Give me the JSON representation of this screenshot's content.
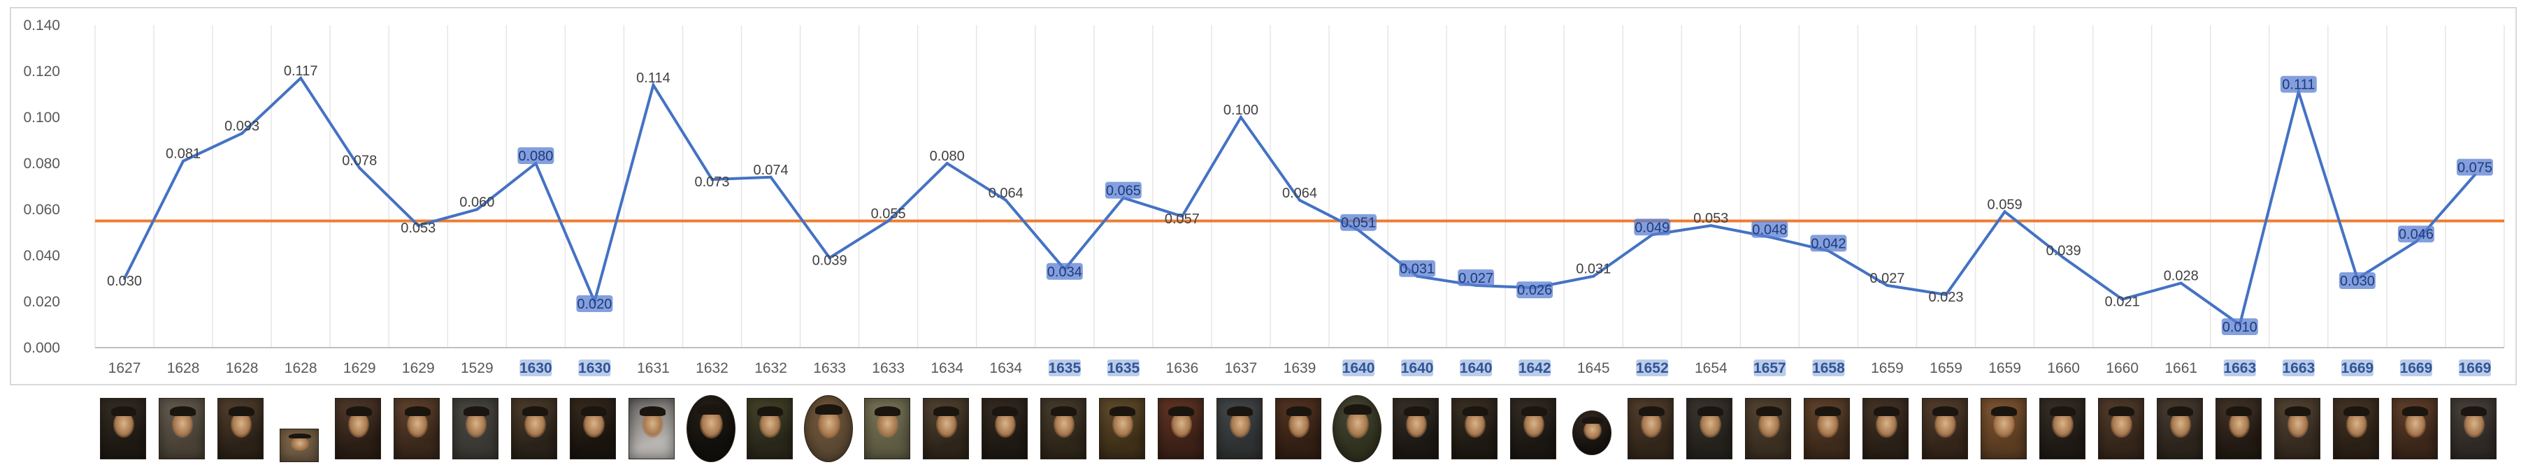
{
  "chart_data": {
    "type": "line",
    "x": [
      "1627",
      "1628",
      "1628",
      "1628",
      "1629",
      "1629",
      "1529",
      "1630",
      "1630",
      "1631",
      "1632",
      "1632",
      "1633",
      "1633",
      "1634",
      "1634",
      "1635",
      "1635",
      "1636",
      "1637",
      "1639",
      "1640",
      "1640",
      "1640",
      "1642",
      "1645",
      "1652",
      "1654",
      "1657",
      "1658",
      "1659",
      "1659",
      "1659",
      "1660",
      "1660",
      "1661",
      "1663",
      "1663",
      "1669",
      "1669",
      "1669"
    ],
    "highlighted_x": [
      7,
      8,
      16,
      17,
      21,
      22,
      23,
      24,
      26,
      28,
      29,
      36,
      37,
      38,
      39,
      40
    ],
    "series": [
      {
        "values": [
          0.03,
          0.081,
          0.093,
          0.117,
          0.078,
          0.053,
          0.06,
          0.08,
          0.02,
          0.114,
          0.073,
          0.074,
          0.039,
          0.055,
          0.08,
          0.064,
          0.034,
          0.065,
          0.057,
          0.1,
          0.064,
          0.051,
          0.031,
          0.027,
          0.026,
          0.031,
          0.049,
          0.053,
          0.048,
          0.042,
          0.027,
          0.023,
          0.059,
          0.039,
          0.021,
          0.028,
          0.01,
          0.111,
          0.03,
          0.046,
          0.075
        ],
        "labels": [
          "0.030",
          "0.081",
          "0.093",
          "0.117",
          "0.078",
          "0.053",
          "0.060",
          "0.080",
          "0.020",
          "0.114",
          "0.073",
          "0.074",
          "0.039",
          "0.055",
          "0.080",
          "0.064",
          "0.034",
          "0.065",
          "0.057",
          "0.100",
          "0.064",
          "0.051",
          "0.031",
          "0.027",
          "0.026",
          "0.031",
          "0.049",
          "0.053",
          "0.048",
          "0.042",
          "0.027",
          "0.023",
          "0.059",
          "0.039",
          "0.021",
          "0.028",
          "0.010",
          "0.111",
          "0.030",
          "0.046",
          "0.075"
        ],
        "highlighted_labels": [
          7,
          8,
          16,
          17,
          21,
          22,
          23,
          24,
          26,
          28,
          29,
          36,
          37,
          38,
          39,
          40
        ],
        "color": "#4472c4"
      }
    ],
    "reference_line": {
      "value": 0.055,
      "color": "#ed7d31"
    },
    "ylim": [
      0,
      0.14
    ],
    "yticks": [
      "0.000",
      "0.020",
      "0.040",
      "0.060",
      "0.080",
      "0.100",
      "0.120",
      "0.140"
    ],
    "grid": "vertical",
    "title": "",
    "xlabel": "",
    "ylabel": ""
  },
  "thumbnails": [
    {
      "tone": "#3a3128",
      "bg": "#1e1913"
    },
    {
      "tone": "#6b6255",
      "bg": "#4a4236"
    },
    {
      "tone": "#5c4632",
      "bg": "#2c2218"
    },
    {
      "tone": "#8a6e4c",
      "bg": "#6d5a42",
      "small": true
    },
    {
      "tone": "#5a4030",
      "bg": "#2a1e15"
    },
    {
      "tone": "#6a4a32",
      "bg": "#3a281b"
    },
    {
      "tone": "#4d4a44",
      "bg": "#3b3934"
    },
    {
      "tone": "#54432f",
      "bg": "#2b231a"
    },
    {
      "tone": "#3c2f22",
      "bg": "#1a140e"
    },
    {
      "tone": "#6d6a68",
      "bg": "#b8b5b2"
    },
    {
      "tone": "#2a231b",
      "bg": "#12100c",
      "oval": true
    },
    {
      "tone": "#4b4a2c",
      "bg": "#29271a"
    },
    {
      "tone": "#7a5c3c",
      "bg": "#5e4a34",
      "oval": true
    },
    {
      "tone": "#7d7a5a",
      "bg": "#5f5c44"
    },
    {
      "tone": "#5b4a36",
      "bg": "#2f261b"
    },
    {
      "tone": "#3b3025",
      "bg": "#1f1914"
    },
    {
      "tone": "#4d4232",
      "bg": "#2e2619"
    },
    {
      "tone": "#6a5330",
      "bg": "#3f3019"
    },
    {
      "tone": "#6a3a28",
      "bg": "#3d2117"
    },
    {
      "tone": "#4a4d4e",
      "bg": "#2f3233"
    },
    {
      "tone": "#5c3a26",
      "bg": "#331f14"
    },
    {
      "tone": "#4e4e3a",
      "bg": "#31321f",
      "oval": true
    },
    {
      "tone": "#3e362c",
      "bg": "#1c1814"
    },
    {
      "tone": "#423629",
      "bg": "#1e1912"
    },
    {
      "tone": "#3a3129",
      "bg": "#1b1713"
    },
    {
      "tone": "#40342a",
      "bg": "#181410",
      "oval": true,
      "small": true
    },
    {
      "tone": "#5a4431",
      "bg": "#33271b"
    },
    {
      "tone": "#3f3a33",
      "bg": "#25221d"
    },
    {
      "tone": "#5b4a35",
      "bg": "#3a2f21"
    },
    {
      "tone": "#6b4a30",
      "bg": "#3e2b1c"
    },
    {
      "tone": "#4c3a2a",
      "bg": "#2a2017"
    },
    {
      "tone": "#5e4532",
      "bg": "#33251a"
    },
    {
      "tone": "#8a5c36",
      "bg": "#5b3d22"
    },
    {
      "tone": "#3d342b",
      "bg": "#1f1a15"
    },
    {
      "tone": "#5a4230",
      "bg": "#35261b"
    },
    {
      "tone": "#4f4236",
      "bg": "#2d251d"
    },
    {
      "tone": "#4a3a2c",
      "bg": "#221a13"
    },
    {
      "tone": "#5c4a38",
      "bg": "#362b20"
    },
    {
      "tone": "#4d3a2a",
      "bg": "#2b2016"
    },
    {
      "tone": "#6a4630",
      "bg": "#3c271a"
    },
    {
      "tone": "#4e4640",
      "bg": "#2f2a26"
    }
  ]
}
